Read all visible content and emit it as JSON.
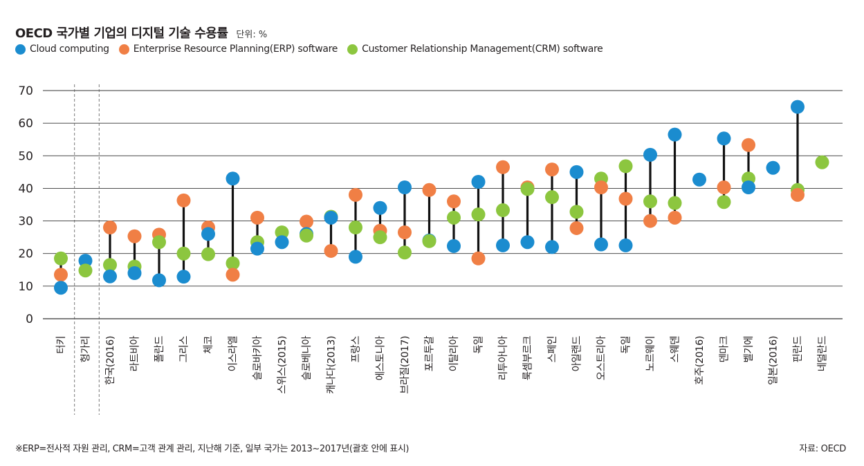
{
  "header": {
    "title": "OECD 국가별 기업의 디지털 기술 수용률",
    "unit": "단위: %"
  },
  "colors": {
    "cloud": "#1b8ccf",
    "erp": "#f07f45",
    "crm": "#8cc63f",
    "range_line": "#111111",
    "grid": "#333333"
  },
  "footnote": "※ERP=전사적 자원 관리, CRM=고객 관계 관리, 지난해 기준, 일부 국가는 2013~2017년(괄호 안에 표시)",
  "source": "자료: OECD",
  "chart_data": {
    "type": "scatter",
    "title": "OECD 국가별 기업의 디지털 기술 수용률",
    "ylabel": "단위: %",
    "ylim": [
      0,
      70
    ],
    "yticks": [
      0,
      10,
      20,
      30,
      40,
      50,
      60,
      70
    ],
    "grid": true,
    "legend_position": "top-left",
    "categories": [
      "터키",
      "헝가리",
      "한국(2016)",
      "라트비아",
      "폴란드",
      "그리스",
      "체코",
      "이스라엘",
      "슬로바키아",
      "스위스(2015)",
      "슬로베니아",
      "캐나다(2013)",
      "프랑스",
      "에스토니아",
      "브라질(2017)",
      "포르투갈",
      "이탈리아",
      "독일",
      "리투아니아",
      "룩셈부르크",
      "스페인",
      "아일랜드",
      "오스트리아",
      "독일",
      "노르웨이",
      "스웨덴",
      "호주(2016)",
      "덴마크",
      "벨기에",
      "일본(2016)",
      "핀란드",
      "네덜란드"
    ],
    "series": [
      {
        "name": "Cloud computing",
        "color": "#1b8ccf",
        "values": [
          9.5,
          17.8,
          13,
          14,
          11.8,
          12.9,
          26,
          43,
          21.5,
          23.5,
          26,
          31,
          19,
          34,
          40.3,
          24,
          22.3,
          42,
          22.5,
          23.5,
          22,
          45,
          22.8,
          22.5,
          50.3,
          56.5,
          42.7,
          55.3,
          40.3,
          46.3,
          65,
          null
        ]
      },
      {
        "name": "Enterprise Resource Planning(ERP) software",
        "color": "#f07f45",
        "values": [
          13.5,
          null,
          28,
          25.3,
          25.8,
          36.3,
          28,
          13.5,
          31,
          null,
          29.8,
          20.8,
          38,
          27,
          26.5,
          39.5,
          36,
          18.5,
          46.5,
          40.3,
          45.8,
          27.8,
          40.3,
          36.8,
          30,
          31,
          null,
          40.3,
          53.3,
          null,
          38,
          null
        ]
      },
      {
        "name": "Customer Relationship Management(CRM) software",
        "color": "#8cc63f",
        "values": [
          18.5,
          14.8,
          16.5,
          16,
          23.5,
          20,
          19.8,
          17,
          23.5,
          26.5,
          25.5,
          31.3,
          28,
          25,
          20.3,
          23.8,
          31,
          32,
          33.3,
          39.8,
          37.3,
          32.8,
          43,
          46.8,
          36,
          35.5,
          null,
          35.8,
          43,
          null,
          39.5,
          48
        ]
      }
    ],
    "dividers_after_index": [
      0,
      1
    ]
  }
}
